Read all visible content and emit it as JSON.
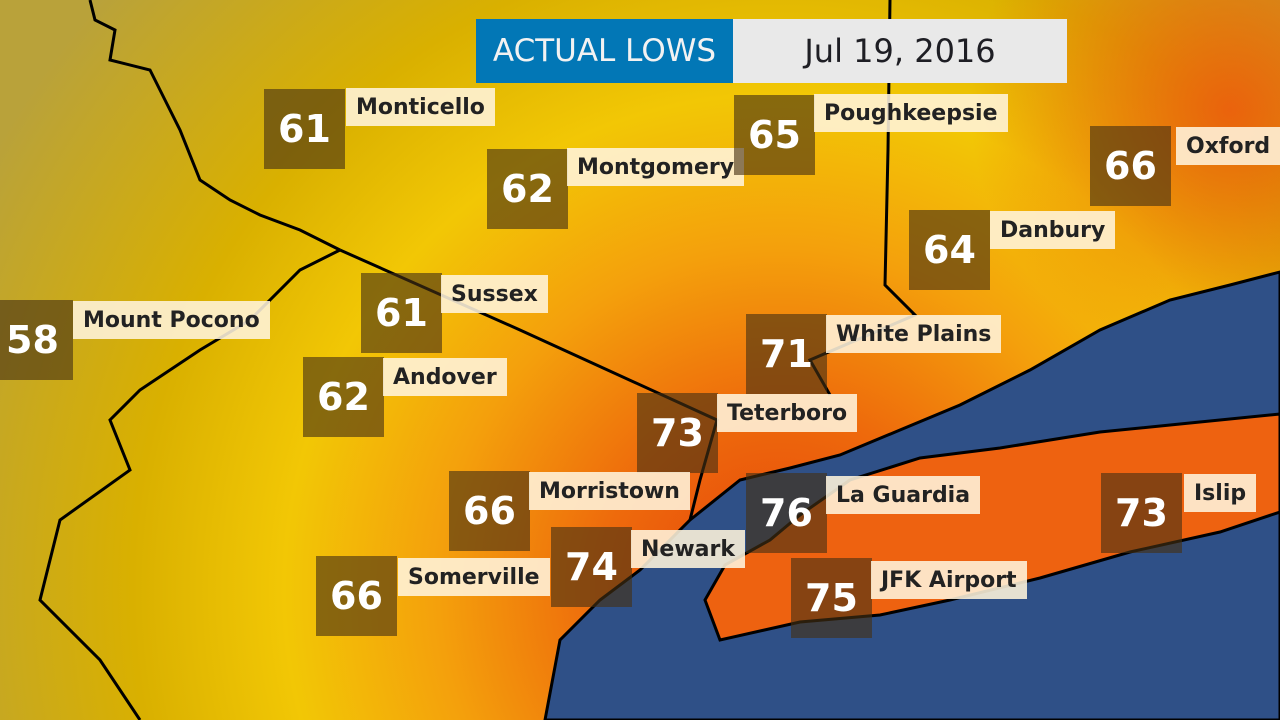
{
  "header": {
    "title": "ACTUAL LOWS",
    "date": "Jul 19, 2016"
  },
  "colors": {
    "title_bg": "#0277b6",
    "water": "#2f5087",
    "value_box": "#46301499",
    "label_bg": "#fff4dc"
  },
  "stations": [
    {
      "name": "Monticello",
      "low": "61"
    },
    {
      "name": "Montgomery",
      "low": "62"
    },
    {
      "name": "Poughkeepsie",
      "low": "65"
    },
    {
      "name": "Oxford",
      "low": "66"
    },
    {
      "name": "Danbury",
      "low": "64"
    },
    {
      "name": "Sussex",
      "low": "61"
    },
    {
      "name": "Mount Pocono",
      "low": "58"
    },
    {
      "name": "Andover",
      "low": "62"
    },
    {
      "name": "White Plains",
      "low": "71"
    },
    {
      "name": "Teterboro",
      "low": "73"
    },
    {
      "name": "Morristown",
      "low": "66"
    },
    {
      "name": "La Guardia",
      "low": "76"
    },
    {
      "name": "Islip",
      "low": "73"
    },
    {
      "name": "Newark",
      "low": "74"
    },
    {
      "name": "Somerville",
      "low": "66"
    },
    {
      "name": "JFK Airport",
      "low": "75"
    }
  ]
}
